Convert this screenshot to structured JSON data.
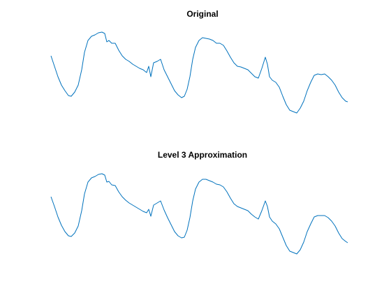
{
  "chart_data": [
    {
      "type": "line",
      "title": "Original",
      "color": "#0072BD",
      "x": [
        0,
        5,
        10,
        15,
        20,
        25,
        29,
        34,
        39,
        44,
        48,
        53,
        58,
        63,
        68,
        73,
        77,
        80,
        83,
        87,
        92,
        97,
        102,
        107,
        112,
        117,
        122,
        127,
        132,
        137,
        140,
        143,
        147,
        152,
        157,
        162,
        167,
        172,
        177,
        182,
        187,
        191,
        195,
        199,
        203,
        207,
        212,
        217,
        222,
        227,
        232,
        237,
        242,
        247,
        252,
        257,
        262,
        267,
        272,
        277,
        282,
        287,
        292,
        297,
        302,
        307,
        310,
        313,
        317,
        322,
        327,
        332,
        337,
        342,
        347,
        352,
        357,
        362,
        367,
        372,
        377,
        382,
        387,
        392,
        397,
        402,
        407,
        412,
        417,
        422,
        425
      ],
      "values": [
        90,
        75,
        60,
        48,
        40,
        33,
        32,
        38,
        48,
        70,
        95,
        112,
        118,
        120,
        123,
        124,
        122,
        110,
        112,
        108,
        108,
        98,
        90,
        85,
        82,
        78,
        75,
        72,
        70,
        66,
        75,
        60,
        80,
        82,
        85,
        70,
        60,
        50,
        40,
        34,
        30,
        32,
        42,
        60,
        85,
        102,
        112,
        116,
        115,
        114,
        112,
        108,
        108,
        105,
        97,
        88,
        80,
        75,
        74,
        72,
        70,
        65,
        60,
        58,
        72,
        88,
        78,
        60,
        55,
        52,
        45,
        32,
        20,
        12,
        10,
        8,
        15,
        25,
        40,
        52,
        62,
        64,
        63,
        64,
        60,
        55,
        48,
        38,
        30,
        25,
        24
      ],
      "xlim": [
        0,
        425
      ],
      "ylim": [
        0,
        130
      ]
    },
    {
      "type": "line",
      "title": "Level 3 Approximation",
      "color": "#0072BD",
      "x": [
        0,
        5,
        10,
        15,
        20,
        25,
        29,
        34,
        39,
        44,
        48,
        53,
        58,
        63,
        68,
        73,
        77,
        80,
        83,
        87,
        92,
        97,
        102,
        107,
        112,
        117,
        122,
        127,
        132,
        137,
        140,
        143,
        147,
        152,
        157,
        162,
        167,
        172,
        177,
        182,
        187,
        191,
        195,
        199,
        203,
        207,
        212,
        217,
        222,
        227,
        232,
        237,
        242,
        247,
        252,
        257,
        262,
        267,
        272,
        277,
        282,
        287,
        292,
        297,
        302,
        307,
        310,
        313,
        317,
        322,
        327,
        332,
        337,
        342,
        347,
        352,
        357,
        362,
        367,
        372,
        377,
        382,
        387,
        392,
        397,
        402,
        407,
        412,
        417,
        422,
        425
      ],
      "values": [
        90,
        76,
        61,
        49,
        40,
        34,
        33,
        38,
        48,
        70,
        94,
        111,
        117,
        119,
        122,
        123,
        121,
        111,
        112,
        107,
        106,
        97,
        90,
        85,
        81,
        78,
        75,
        72,
        69,
        67,
        72,
        62,
        78,
        81,
        84,
        71,
        60,
        50,
        40,
        34,
        31,
        32,
        42,
        60,
        84,
        101,
        111,
        115,
        115,
        113,
        111,
        108,
        107,
        104,
        97,
        88,
        80,
        76,
        74,
        72,
        70,
        65,
        61,
        58,
        70,
        84,
        76,
        61,
        55,
        51,
        44,
        32,
        20,
        12,
        10,
        8,
        14,
        25,
        40,
        51,
        61,
        63,
        63,
        63,
        60,
        55,
        48,
        38,
        30,
        26,
        24
      ],
      "xlim": [
        0,
        425
      ],
      "ylim": [
        0,
        130
      ]
    }
  ]
}
